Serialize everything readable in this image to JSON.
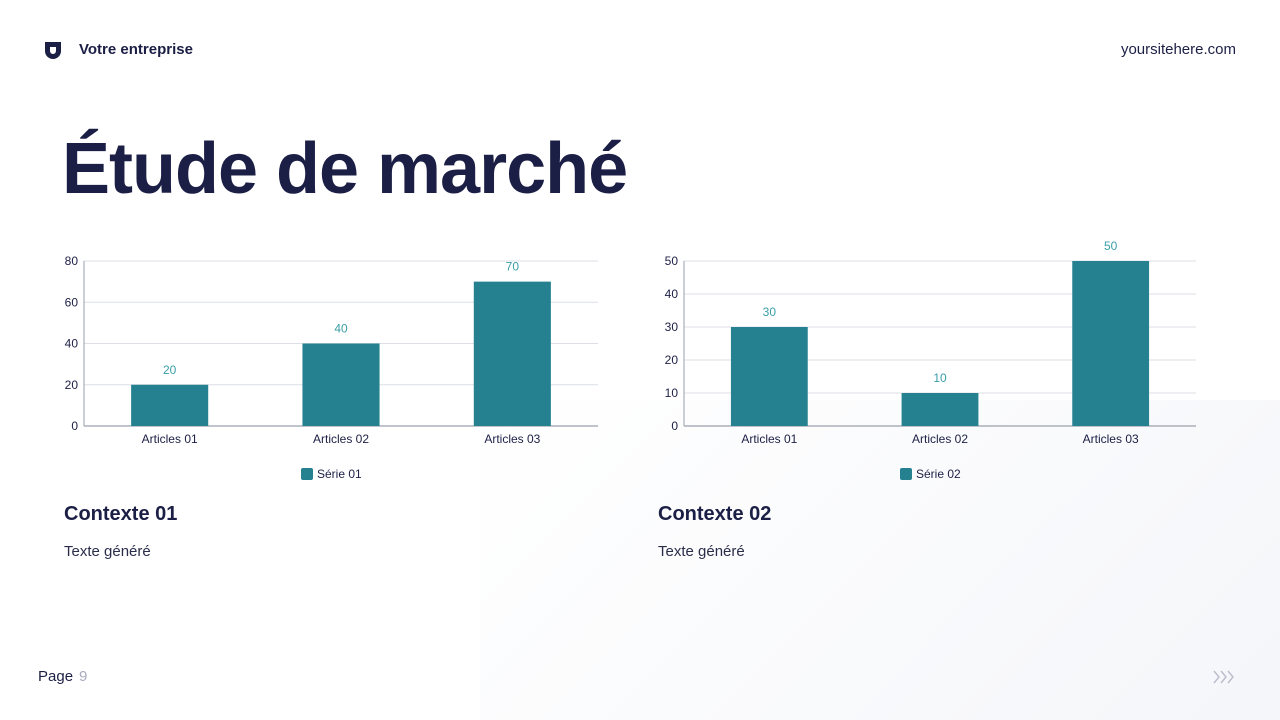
{
  "header": {
    "company": "Votre entreprise",
    "site": "yoursitehere.com"
  },
  "title": "Étude de marché",
  "colors": {
    "bar": "#25818f",
    "label": "#3a9ea8",
    "text": "#1c1f45",
    "grid": "#dcdfe6",
    "axis": "#9aa0ad"
  },
  "charts": [
    {
      "chart_data": {
        "type": "bar",
        "categories": [
          "Articles 01",
          "Articles 02",
          "Articles 03"
        ],
        "series": [
          {
            "name": "Série 01",
            "values": [
              20,
              40,
              70
            ]
          }
        ],
        "ylim": [
          0,
          80
        ],
        "yticks": [
          0,
          20,
          40,
          60,
          80
        ],
        "grid": true,
        "legend": "bottom",
        "data_labels": true
      }
    },
    {
      "chart_data": {
        "type": "bar",
        "categories": [
          "Articles 01",
          "Articles 02",
          "Articles 03"
        ],
        "series": [
          {
            "name": "Série 02",
            "values": [
              30,
              10,
              50
            ]
          }
        ],
        "ylim": [
          0,
          50
        ],
        "yticks": [
          0,
          10,
          20,
          30,
          40,
          50
        ],
        "grid": true,
        "legend": "bottom",
        "data_labels": true
      }
    }
  ],
  "contexts": [
    {
      "title": "Contexte 01",
      "text": "Texte généré"
    },
    {
      "title": "Contexte 02",
      "text": "Texte généré"
    }
  ],
  "footer": {
    "page_label": "Page",
    "page_number": "9",
    "nav_icon": "triple-chevron-right-icon"
  }
}
